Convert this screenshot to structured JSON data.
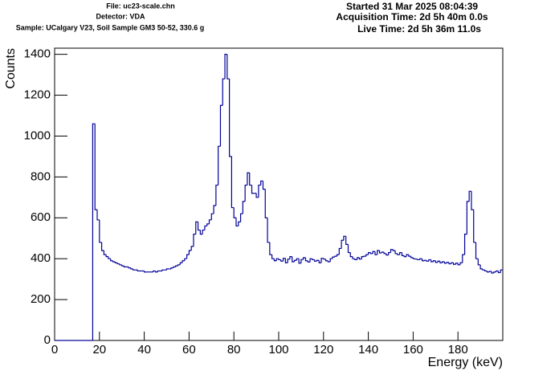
{
  "chart_data": {
    "type": "histogram",
    "header_left": [
      "File: uc23-scale.chn",
      "Detector: VDA",
      "Sample: UCalgary V23, Soil Sample GM3 50-52, 330.6 g"
    ],
    "header_right": [
      "Started 31 Mar 2025 08:04:39",
      "Acquisition Time: 2d 5h 40m 0.0s",
      "Live Time: 2d 5h 36m 11.0s"
    ],
    "x_label": "Energy (keV)",
    "y_label": "Counts",
    "color": "#000099",
    "xlim": [
      0,
      200
    ],
    "ylim": [
      0,
      1430
    ],
    "xticks": [
      0,
      20,
      40,
      60,
      80,
      100,
      120,
      140,
      160,
      180
    ],
    "yticks": [
      0,
      200,
      400,
      600,
      800,
      1000,
      1200,
      1400
    ],
    "bins": [
      0,
      1,
      2,
      3,
      4,
      5,
      6,
      7,
      8,
      9,
      10,
      11,
      12,
      13,
      14,
      15,
      16,
      17,
      18,
      19,
      20,
      21,
      22,
      23,
      24,
      25,
      26,
      27,
      28,
      29,
      30,
      31,
      32,
      33,
      34,
      35,
      36,
      37,
      38,
      39,
      40,
      41,
      42,
      43,
      44,
      45,
      46,
      47,
      48,
      49,
      50,
      51,
      52,
      53,
      54,
      55,
      56,
      57,
      58,
      59,
      60,
      61,
      62,
      63,
      64,
      65,
      66,
      67,
      68,
      69,
      70,
      71,
      72,
      73,
      74,
      75,
      76,
      77,
      78,
      79,
      80,
      81,
      82,
      83,
      84,
      85,
      86,
      87,
      88,
      89,
      90,
      91,
      92,
      93,
      94,
      95,
      96,
      97,
      98,
      99,
      100,
      101,
      102,
      103,
      104,
      105,
      106,
      107,
      108,
      109,
      110,
      111,
      112,
      113,
      114,
      115,
      116,
      117,
      118,
      119,
      120,
      121,
      122,
      123,
      124,
      125,
      126,
      127,
      128,
      129,
      130,
      131,
      132,
      133,
      134,
      135,
      136,
      137,
      138,
      139,
      140,
      141,
      142,
      143,
      144,
      145,
      146,
      147,
      148,
      149,
      150,
      151,
      152,
      153,
      154,
      155,
      156,
      157,
      158,
      159,
      160,
      161,
      162,
      163,
      164,
      165,
      166,
      167,
      168,
      169,
      170,
      171,
      172,
      173,
      174,
      175,
      176,
      177,
      178,
      179,
      180,
      181,
      182,
      183,
      184,
      185,
      186,
      187,
      188,
      189,
      190,
      191,
      192,
      193,
      194,
      195,
      196,
      197,
      198,
      199,
      200
    ],
    "values": [
      0,
      0,
      0,
      0,
      0,
      0,
      0,
      0,
      0,
      0,
      0,
      0,
      0,
      0,
      0,
      0,
      0,
      1060,
      640,
      590,
      480,
      440,
      420,
      410,
      400,
      390,
      385,
      380,
      375,
      370,
      365,
      360,
      360,
      355,
      350,
      345,
      345,
      340,
      340,
      340,
      335,
      335,
      335,
      335,
      340,
      335,
      340,
      340,
      345,
      345,
      350,
      350,
      355,
      360,
      365,
      370,
      380,
      390,
      400,
      420,
      440,
      460,
      520,
      580,
      540,
      520,
      540,
      560,
      570,
      590,
      620,
      660,
      760,
      950,
      1150,
      1280,
      1400,
      1280,
      900,
      650,
      600,
      560,
      580,
      620,
      680,
      760,
      820,
      760,
      720,
      720,
      700,
      760,
      780,
      740,
      600,
      480,
      420,
      400,
      390,
      400,
      395,
      388,
      402,
      380,
      398,
      410,
      385,
      392,
      400,
      378,
      396,
      405,
      390,
      384,
      400,
      395,
      388,
      392,
      380,
      402,
      398,
      390,
      385,
      400,
      408,
      412,
      420,
      450,
      490,
      510,
      470,
      430,
      410,
      400,
      395,
      405,
      398,
      410,
      412,
      420,
      430,
      425,
      435,
      420,
      440,
      428,
      432,
      425,
      418,
      430,
      445,
      440,
      425,
      420,
      430,
      415,
      410,
      420,
      412,
      405,
      400,
      398,
      395,
      400,
      390,
      392,
      388,
      395,
      385,
      390,
      382,
      388,
      380,
      385,
      378,
      382,
      375,
      380,
      372,
      378,
      370,
      380,
      420,
      520,
      680,
      730,
      640,
      480,
      400,
      370,
      350,
      345,
      340,
      335,
      338,
      330,
      335,
      340,
      332,
      345
    ]
  }
}
